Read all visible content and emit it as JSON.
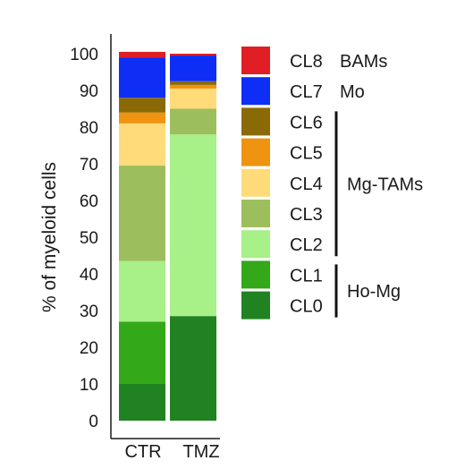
{
  "chart_data": {
    "type": "bar",
    "stacked": true,
    "title": "",
    "xlabel": "",
    "ylabel": "% of myeloid cells",
    "ylim": [
      0,
      100
    ],
    "yticks": [
      0,
      10,
      20,
      30,
      40,
      50,
      60,
      70,
      80,
      90,
      100
    ],
    "categories": [
      "CTR",
      "TMZ"
    ],
    "series": [
      {
        "name": "CL0",
        "color": "#218221",
        "values": [
          10,
          28.5
        ]
      },
      {
        "name": "CL1",
        "color": "#33A818",
        "values": [
          17,
          0
        ]
      },
      {
        "name": "CL2",
        "color": "#A8F088",
        "values": [
          16.5,
          49.5
        ]
      },
      {
        "name": "CL3",
        "color": "#9DBE5C",
        "values": [
          26,
          7
        ]
      },
      {
        "name": "CL4",
        "color": "#FFDB7A",
        "values": [
          11.5,
          5.5
        ]
      },
      {
        "name": "CL5",
        "color": "#EE9410",
        "values": [
          3,
          1
        ]
      },
      {
        "name": "CL6",
        "color": "#8A6A07",
        "values": [
          4,
          1
        ]
      },
      {
        "name": "CL7",
        "color": "#0E2EF6",
        "values": [
          11,
          7
        ]
      },
      {
        "name": "CL8",
        "color": "#E01E24",
        "values": [
          1.5,
          0.5
        ]
      }
    ],
    "legend_order": [
      "CL8",
      "CL7",
      "CL6",
      "CL5",
      "CL4",
      "CL3",
      "CL2",
      "CL1",
      "CL0"
    ],
    "groups": [
      {
        "label": "BAMs",
        "members": [
          "CL8"
        ]
      },
      {
        "label": "Mo",
        "members": [
          "CL7"
        ]
      },
      {
        "label": "Mg-TAMs",
        "members": [
          "CL6",
          "CL5",
          "CL4",
          "CL3",
          "CL2"
        ]
      },
      {
        "label": "Ho-Mg",
        "members": [
          "CL1",
          "CL0"
        ]
      }
    ],
    "legend_placement": "right",
    "grid": false
  }
}
